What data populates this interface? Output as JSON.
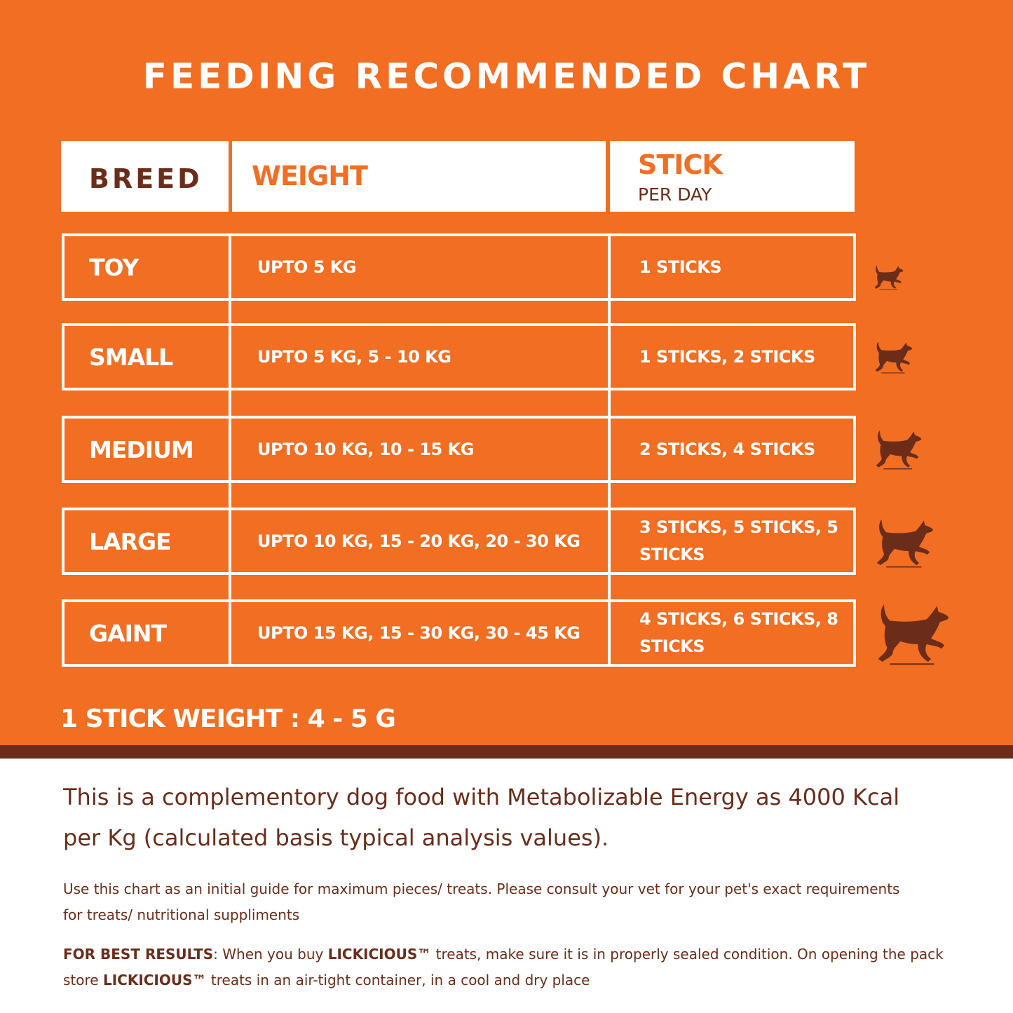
{
  "title": "FEEDING RECOMMENDED CHART",
  "colors": {
    "orange": "#F26E22",
    "brown": "#6B2D1A"
  },
  "header": {
    "breed": "BREED",
    "weight": "WEIGHT",
    "stick": "STICK",
    "per_day": "PER DAY"
  },
  "rows": [
    {
      "breed": "TOY",
      "weight": "UPTO 5 KG",
      "sticks": "1 STICKS",
      "icon": "dog-icon"
    },
    {
      "breed": "SMALL",
      "weight": "UPTO 5 KG, 5 - 10 KG",
      "sticks": "1 STICKS, 2 STICKS",
      "icon": "dog-icon"
    },
    {
      "breed": "MEDIUM",
      "weight": "UPTO 10 KG, 10 - 15 KG",
      "sticks": "2 STICKS, 4 STICKS",
      "icon": "dog-icon"
    },
    {
      "breed": "LARGE",
      "weight": "UPTO 10 KG, 15 - 20 KG, 20 - 30 KG",
      "sticks": "3 STICKS, 5 STICKS, 5 STICKS",
      "icon": "dog-icon"
    },
    {
      "breed": "GAINT",
      "weight": "UPTO 15 KG, 15 - 30 KG, 30 - 45 KG",
      "sticks": "4 STICKS, 6 STICKS, 8 STICKS",
      "icon": "dog-icon"
    }
  ],
  "stick_weight": "1 STICK WEIGHT : 4 - 5 G",
  "energy_text": "This is a complementory dog food with Metabolizable Energy as 4000 Kcal per Kg (calculated basis typical analysis values).",
  "guide_text": "Use this chart as an initial guide for maximum pieces/ treats. Please consult your vet for your pet's exact requirements for treats/ nutritional suppliments",
  "best_results": {
    "label": "FOR BEST RESULTS",
    "t1": ": When you buy ",
    "brand": "LICKICIOUS™",
    "t2": " treats, make sure it is in properly sealed condition. On opening the pack store ",
    "t3": " treats in an air-tight container, in a cool and dry place"
  }
}
